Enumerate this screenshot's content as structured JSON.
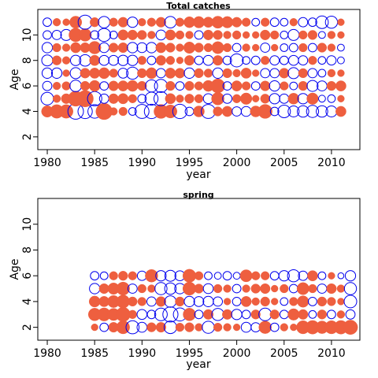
{
  "chart_data": [
    {
      "type": "scatter",
      "subtype": "bubble",
      "title": "Total catches",
      "xlabel": "year",
      "ylabel": "Age",
      "xlim": [
        1979,
        2013
      ],
      "ylim": [
        1,
        12
      ],
      "xticks": [
        1980,
        1985,
        1990,
        1995,
        2000,
        2005,
        2010
      ],
      "yticks": [
        2,
        4,
        6,
        8,
        10
      ],
      "positive_color": "#EE5F3F",
      "negative_color": "#0000EE",
      "years": [
        1980,
        1981,
        1982,
        1983,
        1984,
        1985,
        1986,
        1987,
        1988,
        1989,
        1990,
        1991,
        1992,
        1993,
        1994,
        1995,
        1996,
        1997,
        1998,
        1999,
        2000,
        2001,
        2002,
        2003,
        2004,
        2005,
        2006,
        2007,
        2008,
        2009,
        2010,
        2011
      ],
      "ages": [
        4,
        5,
        6,
        7,
        8,
        9,
        10,
        11
      ],
      "residuals": [
        [
          1.1,
          1.5,
          1.5,
          -2.0,
          -1.7,
          -1.5,
          2.2,
          0.5,
          0.6,
          -0.5,
          -1.6,
          -1.7,
          1.6,
          1.4,
          -1.7,
          -0.6,
          1.0,
          -1.6,
          0.7,
          0.9,
          -0.7,
          -0.8,
          1.0,
          1.6,
          -0.6,
          -1.3,
          -1.0,
          -1.1,
          -1.2,
          -1.1,
          -1.0,
          0.9
        ],
        [
          -1.3,
          0.5,
          0.8,
          1.9,
          2.2,
          -1.7,
          -0.7,
          0.8,
          0.9,
          0.6,
          -0.6,
          -1.4,
          -1.6,
          0.9,
          0.5,
          0.7,
          0.6,
          -0.8,
          1.3,
          -0.7,
          0.6,
          1.1,
          0.4,
          0.7,
          -0.9,
          -0.7,
          1.0,
          -0.9,
          1.1,
          -0.4,
          -0.5,
          0.4
        ],
        [
          -0.7,
          0.5,
          0.6,
          -1.1,
          0.7,
          1.0,
          -0.6,
          0.8,
          0.9,
          1.0,
          0.7,
          -1.2,
          -1.4,
          0.7,
          -0.6,
          0.7,
          0.6,
          1.0,
          1.6,
          -0.6,
          0.9,
          0.6,
          -0.6,
          0.8,
          -0.9,
          0.6,
          -0.5,
          0.7,
          -1.0,
          -0.8,
          0.7,
          0.9
        ],
        [
          -0.9,
          -0.9,
          0.4,
          -1.0,
          0.8,
          0.9,
          1.0,
          0.6,
          -0.8,
          -1.2,
          0.7,
          1.0,
          -0.7,
          0.9,
          0.8,
          -0.9,
          0.7,
          0.6,
          -0.9,
          0.7,
          0.5,
          0.9,
          0.4,
          -0.7,
          -0.7,
          0.8,
          -1.0,
          0.7,
          -0.7,
          -0.5,
          0.5,
          0.4
        ],
        [
          -1.0,
          0.7,
          0.5,
          -0.9,
          -1.1,
          0.9,
          -0.8,
          -0.8,
          -0.9,
          -0.9,
          0.6,
          -0.6,
          0.8,
          0.6,
          0.4,
          0.8,
          -0.6,
          -0.8,
          0.8,
          -0.6,
          -1.4,
          -0.5,
          -0.6,
          0.6,
          -0.7,
          -0.6,
          -0.8,
          -0.7,
          0.6,
          -0.5,
          -0.7,
          -0.4
        ],
        [
          -0.9,
          0.6,
          0.5,
          0.9,
          0.8,
          1.3,
          -0.8,
          0.7,
          0.8,
          -0.9,
          -0.8,
          -0.9,
          0.9,
          0.7,
          0.5,
          1.1,
          0.7,
          0.6,
          1.2,
          0.6,
          -0.6,
          0.5,
          0.4,
          -0.7,
          0.4,
          -0.5,
          -0.6,
          0.6,
          -0.6,
          0.7,
          0.5,
          -0.4
        ],
        [
          -0.6,
          -0.7,
          -1.0,
          1.5,
          1.3,
          -0.6,
          -1.4,
          -0.5,
          0.9,
          0.8,
          0.7,
          0.5,
          -0.8,
          0.9,
          0.6,
          0.5,
          -0.6,
          0.8,
          0.7,
          0.5,
          0.6,
          0.4,
          0.4,
          0.8,
          0.6,
          -0.5,
          -1.0,
          0.6,
          0.7,
          -0.4,
          0.5,
          0.4
        ],
        [
          -0.6,
          0.5,
          0.4,
          1.2,
          -1.6,
          0.7,
          -1.1,
          0.6,
          0.8,
          -0.9,
          0.5,
          0.6,
          0.8,
          -1.1,
          0.6,
          1.0,
          1.1,
          0.9,
          1.2,
          1.1,
          0.8,
          0.6,
          -0.5,
          0.6,
          -0.6,
          -0.5,
          0.5,
          -0.7,
          -0.6,
          -1.3,
          -1.2,
          0.4
        ]
      ]
    },
    {
      "type": "scatter",
      "subtype": "bubble",
      "title": "spring",
      "xlabel": "year",
      "ylabel": "Age",
      "xlim": [
        1979,
        2013
      ],
      "ylim": [
        1,
        12
      ],
      "xticks": [
        1980,
        1985,
        1990,
        1995,
        2000,
        2005,
        2010
      ],
      "yticks": [
        2,
        4,
        6,
        8,
        10
      ],
      "positive_color": "#EE5F3F",
      "negative_color": "#0000EE",
      "years": [
        1985,
        1986,
        1987,
        1988,
        1989,
        1990,
        1991,
        1992,
        1993,
        1994,
        1995,
        1996,
        1997,
        1998,
        1999,
        2000,
        2001,
        2002,
        2003,
        2004,
        2005,
        2006,
        2007,
        2008,
        2009,
        2010,
        2011,
        2012
      ],
      "ages": [
        2,
        3,
        4,
        5,
        6
      ],
      "residuals": [
        [
          0.4,
          -0.6,
          0.8,
          1.4,
          -1.4,
          -0.8,
          0.7,
          0.8,
          -1.3,
          0.6,
          0.7,
          0.5,
          -1.2,
          0.6,
          0.5,
          0.4,
          -0.8,
          -0.7,
          1.3,
          -0.6,
          0.5,
          0.4,
          1.4,
          1.5,
          1.3,
          1.4,
          1.5,
          1.7
        ],
        [
          1.3,
          1.4,
          1.2,
          1.7,
          0.6,
          -0.8,
          -0.6,
          -1.3,
          -1.9,
          -1.4,
          1.3,
          -0.6,
          0.8,
          -1.2,
          0.8,
          -0.9,
          -0.6,
          0.7,
          -1.3,
          0.7,
          -0.6,
          1.1,
          0.8,
          -0.5,
          0.7,
          -0.6,
          0.5,
          -0.7
        ],
        [
          1.0,
          0.9,
          1.2,
          1.4,
          0.7,
          0.6,
          -0.7,
          0.8,
          -1.1,
          0.7,
          -0.9,
          -0.8,
          -0.9,
          -0.7,
          0.4,
          -0.6,
          0.9,
          0.5,
          0.7,
          0.4,
          -0.5,
          0.6,
          1.1,
          -0.6,
          0.7,
          0.6,
          0.4,
          -1.3
        ],
        [
          -0.9,
          0.8,
          1.1,
          1.4,
          -0.7,
          0.6,
          0.5,
          -1.2,
          -1.1,
          -0.9,
          1.4,
          0.7,
          -0.8,
          0.6,
          0.5,
          -0.6,
          0.5,
          0.7,
          0.8,
          0.4,
          0.6,
          -0.6,
          1.2,
          0.6,
          -0.7,
          0.8,
          0.5,
          -1.2
        ],
        [
          -0.6,
          -0.5,
          0.6,
          0.7,
          0.6,
          -0.7,
          1.3,
          -0.9,
          -1.0,
          -0.8,
          1.4,
          0.6,
          -0.5,
          -0.4,
          -0.6,
          -0.4,
          1.2,
          0.6,
          0.6,
          -0.6,
          -0.9,
          -1.2,
          -0.7,
          0.9,
          -0.5,
          0.4,
          -0.3,
          -0.9
        ]
      ]
    }
  ]
}
